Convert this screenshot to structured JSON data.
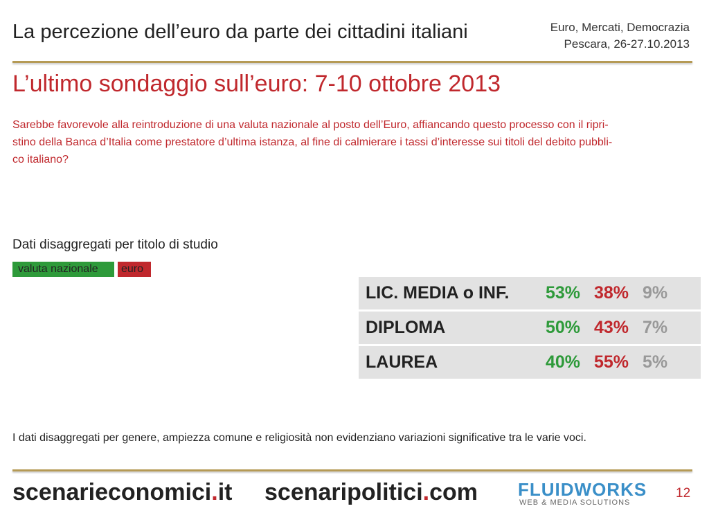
{
  "header": {
    "title": "La percezione dell’euro da parte dei cittadini italiani",
    "event": [
      "Euro, Mercati, Democrazia",
      "Pescara, 26-27.10.2013"
    ]
  },
  "heading": "L’ultimo sondaggio sull’euro: 7-10 ottobre 2013",
  "question": [
    "Sarebbe favorevole alla reintroduzione di una valuta nazionale al posto dell’Euro, affiancando questo processo con il ripri-",
    "stino della Banca d’Italia come prestatore d’ultima istanza, al fine di calmierare i tassi d’interesse sui titoli del debito pubbli-",
    "co italiano?"
  ],
  "section": "Dati disaggregati per titolo di studio",
  "legend": [
    "valuta nazionale",
    "euro"
  ],
  "table": {
    "rows": [
      [
        "LIC. MEDIA o INF.",
        "53%",
        "38%",
        "9%"
      ],
      [
        "DIPLOMA",
        "50%",
        "43%",
        "7%"
      ],
      [
        "LAUREA",
        "40%",
        "55%",
        "5%"
      ]
    ]
  },
  "note": "I dati disaggregati per genere, ampiezza comune e religiosità non evidenziano variazioni significative tra le varie voci.",
  "footer": {
    "sites": [
      [
        "scenarieconomici",
        ".",
        "it"
      ],
      [
        "scenaripolitici",
        ".",
        "com"
      ]
    ],
    "logo": [
      "FLUIDWORKS",
      "WEB & MEDIA SOLUTIONS"
    ],
    "page": 12
  }
}
